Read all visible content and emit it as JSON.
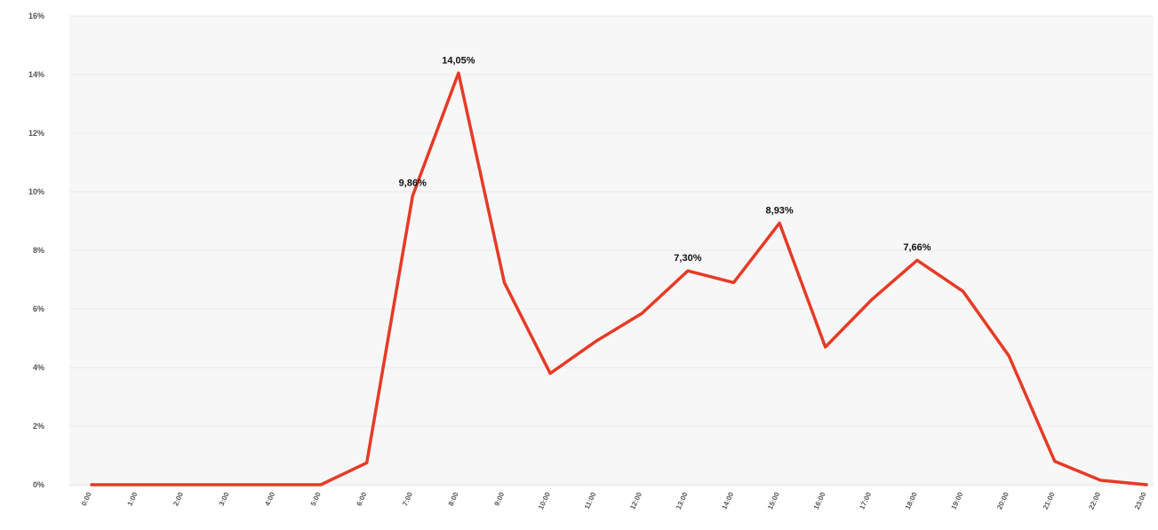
{
  "chart_data": {
    "type": "line",
    "title": "",
    "xlabel": "",
    "ylabel": "",
    "grid": true,
    "ylim": [
      0,
      16
    ],
    "y_ticks": [
      0,
      2,
      4,
      6,
      8,
      10,
      12,
      14,
      16
    ],
    "y_tick_labels": [
      "0%",
      "2%",
      "4%",
      "6%",
      "8%",
      "10%",
      "12%",
      "14%",
      "16%"
    ],
    "categories": [
      "0:00",
      "1:00",
      "2:00",
      "3:00",
      "4:00",
      "5:00",
      "6:00",
      "7:00",
      "8:00",
      "9:00",
      "10:00",
      "11:00",
      "12:00",
      "13:00",
      "14:00",
      "15:00",
      "16:00",
      "17:00",
      "18:00",
      "19:00",
      "20:00",
      "21:00",
      "22:00",
      "23:00"
    ],
    "series": [
      {
        "name": "",
        "color": "#e63a26",
        "values": [
          0,
          0,
          0,
          0,
          0,
          0,
          0.75,
          9.86,
          14.05,
          6.9,
          3.8,
          4.9,
          5.85,
          7.3,
          6.9,
          8.93,
          4.7,
          6.3,
          7.66,
          6.6,
          4.4,
          0.8,
          0.15,
          0
        ]
      }
    ],
    "data_labels": [
      {
        "index": 7,
        "text": "9,86%"
      },
      {
        "index": 8,
        "text": "14,05%"
      },
      {
        "index": 13,
        "text": "7,30%"
      },
      {
        "index": 15,
        "text": "8,93%"
      },
      {
        "index": 18,
        "text": "7,66%"
      }
    ]
  }
}
